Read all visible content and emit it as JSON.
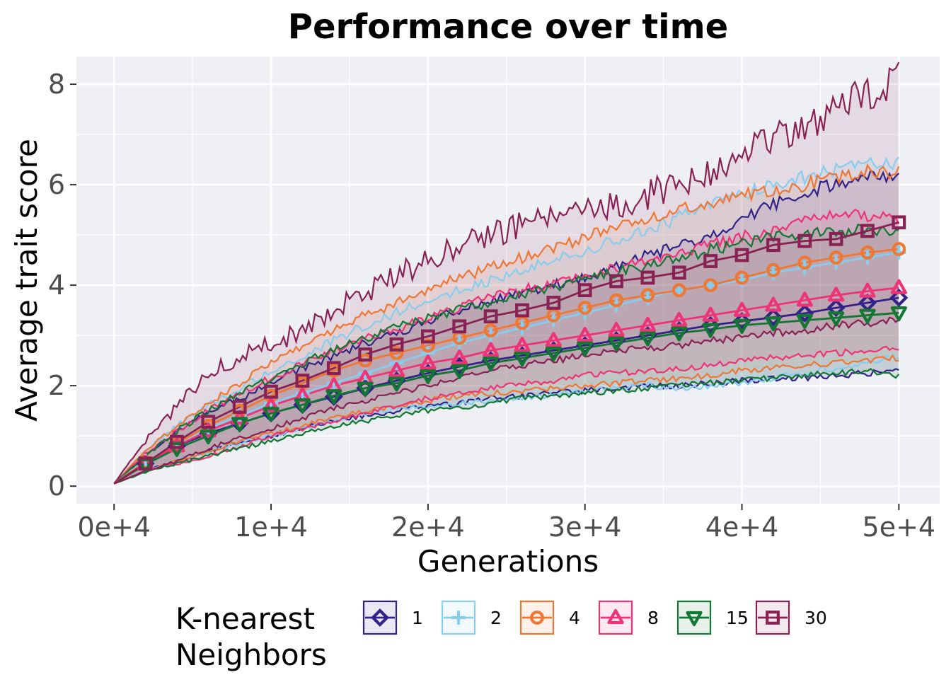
{
  "chart_data": {
    "type": "line",
    "title": "Performance over time",
    "xlabel": "Generations",
    "ylabel": "Average trait score",
    "xlim": [
      -2400,
      52600
    ],
    "ylim": [
      -0.35,
      8.55
    ],
    "x_ticks": [
      0,
      10000,
      20000,
      30000,
      40000,
      50000
    ],
    "x_tick_labels": [
      "0e+4",
      "1e+4",
      "2e+4",
      "3e+4",
      "4e+4",
      "5e+4"
    ],
    "y_ticks": [
      0,
      2,
      4,
      6,
      8
    ],
    "y_tick_labels": [
      "0",
      "2",
      "4",
      "6",
      "8"
    ],
    "grid": true,
    "legend": {
      "title_line1": "K-nearest",
      "title_line2": "Neighbors",
      "placement": "bottom"
    },
    "x": [
      0,
      2000,
      4000,
      6000,
      8000,
      10000,
      12000,
      14000,
      16000,
      18000,
      20000,
      22000,
      24000,
      26000,
      28000,
      30000,
      32000,
      34000,
      36000,
      38000,
      40000,
      42000,
      44000,
      46000,
      48000,
      50000
    ],
    "series": [
      {
        "name": "1",
        "color": "#332288",
        "marker": "diamond",
        "values": [
          0.05,
          0.45,
          0.8,
          1.05,
          1.25,
          1.45,
          1.62,
          1.78,
          1.95,
          2.1,
          2.25,
          2.38,
          2.5,
          2.6,
          2.7,
          2.8,
          2.9,
          3.0,
          3.1,
          3.2,
          3.28,
          3.36,
          3.44,
          3.55,
          3.65,
          3.75
        ],
        "lower": [
          0.05,
          0.3,
          0.5,
          0.7,
          0.85,
          1.0,
          1.15,
          1.3,
          1.4,
          1.5,
          1.6,
          1.65,
          1.75,
          1.8,
          1.85,
          1.9,
          1.95,
          2.0,
          2.0,
          2.05,
          2.1,
          2.15,
          2.15,
          2.2,
          2.25,
          2.3
        ],
        "upper": [
          0.05,
          0.6,
          1.1,
          1.45,
          1.75,
          2.05,
          2.35,
          2.6,
          2.85,
          3.05,
          3.3,
          3.5,
          3.7,
          3.85,
          4.0,
          4.15,
          4.35,
          4.6,
          4.8,
          5.0,
          5.3,
          5.6,
          5.85,
          6.0,
          6.2,
          6.2
        ]
      },
      {
        "name": "2",
        "color": "#88CCEE",
        "marker": "plus",
        "values": [
          0.05,
          0.5,
          0.85,
          1.15,
          1.4,
          1.65,
          1.85,
          2.05,
          2.25,
          2.45,
          2.65,
          2.85,
          3.0,
          3.15,
          3.3,
          3.45,
          3.6,
          3.75,
          3.9,
          4.0,
          4.1,
          4.25,
          4.35,
          4.45,
          4.55,
          4.65
        ],
        "lower": [
          0.05,
          0.3,
          0.5,
          0.7,
          0.85,
          1.0,
          1.15,
          1.3,
          1.45,
          1.55,
          1.6,
          1.65,
          1.7,
          1.75,
          1.8,
          1.9,
          1.95,
          2.0,
          1.95,
          2.0,
          2.05,
          2.15,
          2.25,
          2.35,
          2.45,
          2.6
        ],
        "upper": [
          0.05,
          0.7,
          1.2,
          1.6,
          1.95,
          2.3,
          2.6,
          2.9,
          3.2,
          3.45,
          3.7,
          3.9,
          4.1,
          4.3,
          4.5,
          4.7,
          4.9,
          5.1,
          5.35,
          5.6,
          5.8,
          6.0,
          6.15,
          6.3,
          6.4,
          6.45
        ]
      },
      {
        "name": "4",
        "color": "#EE7733",
        "marker": "circle",
        "values": [
          0.05,
          0.48,
          0.85,
          1.2,
          1.5,
          1.8,
          2.05,
          2.3,
          2.5,
          2.65,
          2.8,
          2.95,
          3.1,
          3.25,
          3.4,
          3.55,
          3.7,
          3.8,
          3.9,
          4.0,
          4.15,
          4.3,
          4.45,
          4.55,
          4.65,
          4.72
        ],
        "lower": [
          0.05,
          0.3,
          0.5,
          0.7,
          0.9,
          1.05,
          1.2,
          1.35,
          1.5,
          1.6,
          1.7,
          1.8,
          1.85,
          1.9,
          1.95,
          2.0,
          2.05,
          2.1,
          2.15,
          2.2,
          2.3,
          2.35,
          2.4,
          2.45,
          2.5,
          2.55
        ],
        "upper": [
          0.05,
          0.7,
          1.2,
          1.65,
          2.05,
          2.45,
          2.8,
          3.1,
          3.4,
          3.65,
          3.9,
          4.15,
          4.35,
          4.55,
          4.75,
          4.95,
          5.15,
          5.3,
          5.5,
          5.65,
          5.8,
          5.9,
          6.0,
          6.15,
          6.3,
          6.25
        ]
      },
      {
        "name": "8",
        "color": "#EE3377",
        "marker": "triangle",
        "values": [
          0.05,
          0.45,
          0.8,
          1.1,
          1.35,
          1.6,
          1.8,
          2.0,
          2.15,
          2.3,
          2.45,
          2.55,
          2.7,
          2.8,
          2.9,
          3.0,
          3.1,
          3.2,
          3.3,
          3.4,
          3.5,
          3.6,
          3.7,
          3.8,
          3.88,
          3.95
        ],
        "lower": [
          0.05,
          0.3,
          0.45,
          0.6,
          0.8,
          1.0,
          1.15,
          1.3,
          1.45,
          1.6,
          1.75,
          1.85,
          1.95,
          2.05,
          2.1,
          2.2,
          2.25,
          2.3,
          2.35,
          2.4,
          2.5,
          2.55,
          2.6,
          2.65,
          2.7,
          2.75
        ],
        "upper": [
          0.05,
          0.65,
          1.1,
          1.5,
          1.85,
          2.15,
          2.45,
          2.7,
          2.95,
          3.15,
          3.35,
          3.55,
          3.75,
          3.9,
          4.05,
          4.2,
          4.35,
          4.5,
          4.65,
          4.8,
          4.95,
          5.1,
          5.25,
          5.4,
          5.4,
          5.35
        ]
      },
      {
        "name": "15",
        "color": "#117733",
        "marker": "triangle-down",
        "values": [
          0.05,
          0.43,
          0.75,
          1.0,
          1.25,
          1.45,
          1.62,
          1.8,
          1.95,
          2.05,
          2.2,
          2.3,
          2.45,
          2.55,
          2.65,
          2.75,
          2.85,
          2.95,
          3.05,
          3.12,
          3.2,
          3.25,
          3.3,
          3.35,
          3.4,
          3.45
        ],
        "lower": [
          0.05,
          0.28,
          0.45,
          0.6,
          0.75,
          0.9,
          1.05,
          1.2,
          1.3,
          1.4,
          1.5,
          1.55,
          1.65,
          1.75,
          1.8,
          1.85,
          1.9,
          1.95,
          2.0,
          2.05,
          2.1,
          2.15,
          2.2,
          2.25,
          2.3,
          2.2
        ],
        "upper": [
          0.05,
          0.6,
          1.1,
          1.5,
          1.85,
          2.15,
          2.45,
          2.7,
          2.95,
          3.15,
          3.35,
          3.5,
          3.65,
          3.8,
          3.95,
          4.1,
          4.25,
          4.4,
          4.55,
          4.7,
          4.85,
          4.95,
          5.0,
          5.05,
          5.1,
          5.0
        ]
      },
      {
        "name": "30",
        "color": "#882255",
        "marker": "square",
        "values": [
          0.05,
          0.45,
          0.88,
          1.28,
          1.58,
          1.88,
          2.1,
          2.35,
          2.62,
          2.82,
          2.98,
          3.18,
          3.38,
          3.5,
          3.65,
          3.9,
          4.08,
          4.15,
          4.25,
          4.48,
          4.6,
          4.8,
          4.88,
          4.92,
          5.08,
          5.25
        ],
        "lower": [
          0.05,
          0.3,
          0.5,
          0.75,
          0.95,
          1.15,
          1.35,
          1.55,
          1.7,
          1.85,
          2.0,
          2.15,
          2.3,
          2.4,
          2.5,
          2.6,
          2.7,
          2.75,
          2.8,
          2.9,
          2.95,
          3.05,
          3.1,
          3.2,
          3.25,
          3.3
        ],
        "upper": [
          0.05,
          0.9,
          1.6,
          2.2,
          2.6,
          2.8,
          3.1,
          3.5,
          3.85,
          4.2,
          4.5,
          4.75,
          5.0,
          5.2,
          5.3,
          5.45,
          5.6,
          5.8,
          6.0,
          6.3,
          6.6,
          6.9,
          7.2,
          7.5,
          7.8,
          8.15
        ]
      }
    ]
  }
}
